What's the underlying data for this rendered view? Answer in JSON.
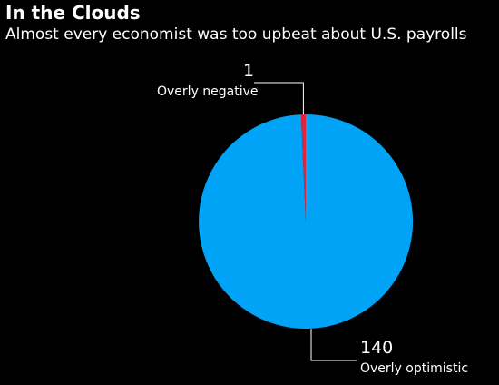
{
  "chart_data": {
    "type": "pie",
    "title": "In the Clouds",
    "subtitle": "Almost every economist was too upbeat about U.S. payrolls",
    "slices": [
      {
        "label": "Overly negative",
        "value": 1,
        "value_label": "1",
        "color": "#e2233d"
      },
      {
        "label": "Overly optimistic",
        "value": 140,
        "value_label": "140",
        "color": "#00a3f5"
      }
    ],
    "background_color": "#000000",
    "leader_line_color": "#ffffff"
  }
}
